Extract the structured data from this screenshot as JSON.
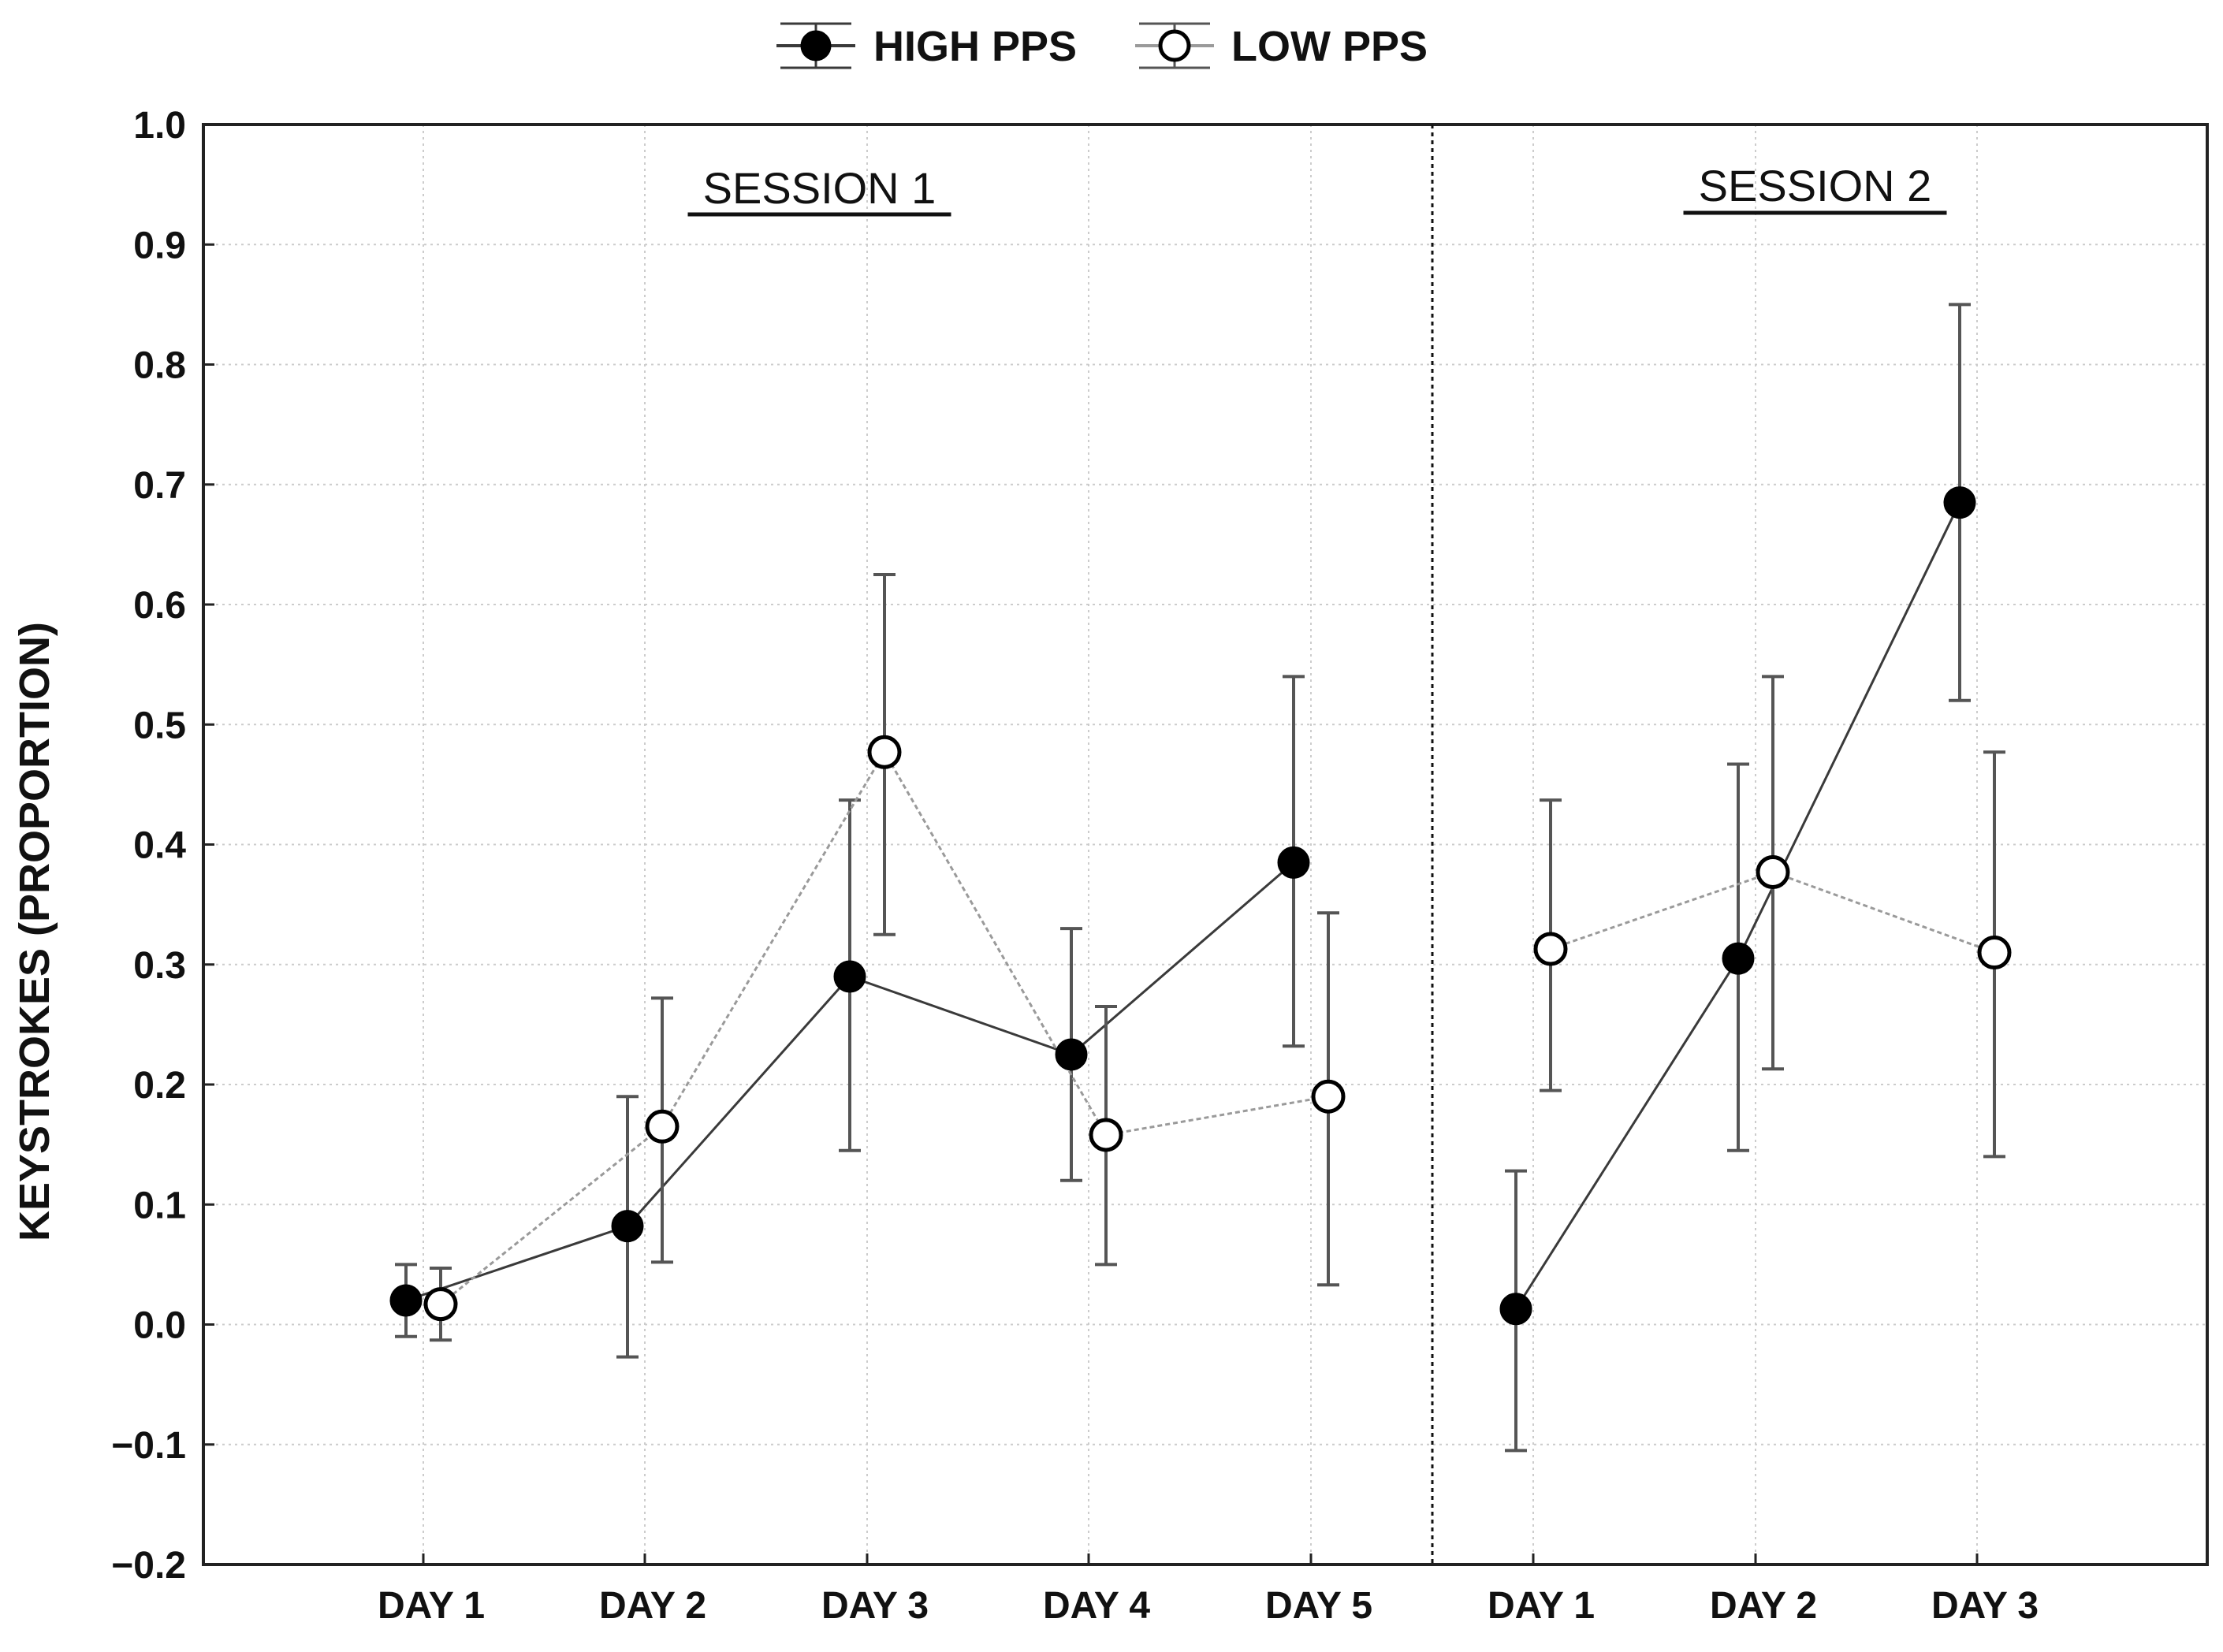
{
  "chart_data": {
    "type": "line",
    "ylabel": "KEYSTROKES (PROPORTION)",
    "ylim": [
      -0.2,
      1.0
    ],
    "yticks": [
      "1.0",
      "0.9",
      "0.8",
      "0.7",
      "0.6",
      "0.5",
      "0.4",
      "0.3",
      "0.2",
      "0.1",
      "0.0",
      "−0.1",
      "−0.2"
    ],
    "categories": [
      "DAY 1",
      "DAY 2",
      "DAY 3",
      "DAY 4",
      "DAY 5",
      "DAY 1",
      "DAY 2",
      "DAY 3"
    ],
    "sessions": [
      {
        "label": "SESSION 1",
        "days": 5
      },
      {
        "label": "SESSION 2",
        "days": 3
      }
    ],
    "legend": {
      "high_label": "HIGH PPS",
      "low_label": "LOW PPS"
    },
    "series": [
      {
        "name": "HIGH PPS",
        "marker": "filled",
        "values": [
          0.02,
          0.082,
          0.29,
          0.225,
          0.385,
          0.013,
          0.305,
          0.685
        ],
        "err_low": [
          -0.01,
          -0.027,
          0.145,
          0.12,
          0.232,
          -0.105,
          0.145,
          0.52
        ],
        "err_high": [
          0.05,
          0.19,
          0.437,
          0.33,
          0.54,
          0.128,
          0.467,
          0.85
        ]
      },
      {
        "name": "LOW PPS",
        "marker": "open",
        "values": [
          0.017,
          0.165,
          0.477,
          0.158,
          0.19,
          0.313,
          0.377,
          0.31
        ],
        "err_low": [
          -0.013,
          0.052,
          0.325,
          0.05,
          0.033,
          0.195,
          0.213,
          0.14
        ],
        "err_high": [
          0.047,
          0.272,
          0.625,
          0.265,
          0.343,
          0.437,
          0.54,
          0.477
        ]
      }
    ],
    "colors": {
      "high_line": "#3a3a3a",
      "low_line": "#9a9a9a",
      "grid": "#cccccc",
      "axis": "#222222"
    }
  }
}
